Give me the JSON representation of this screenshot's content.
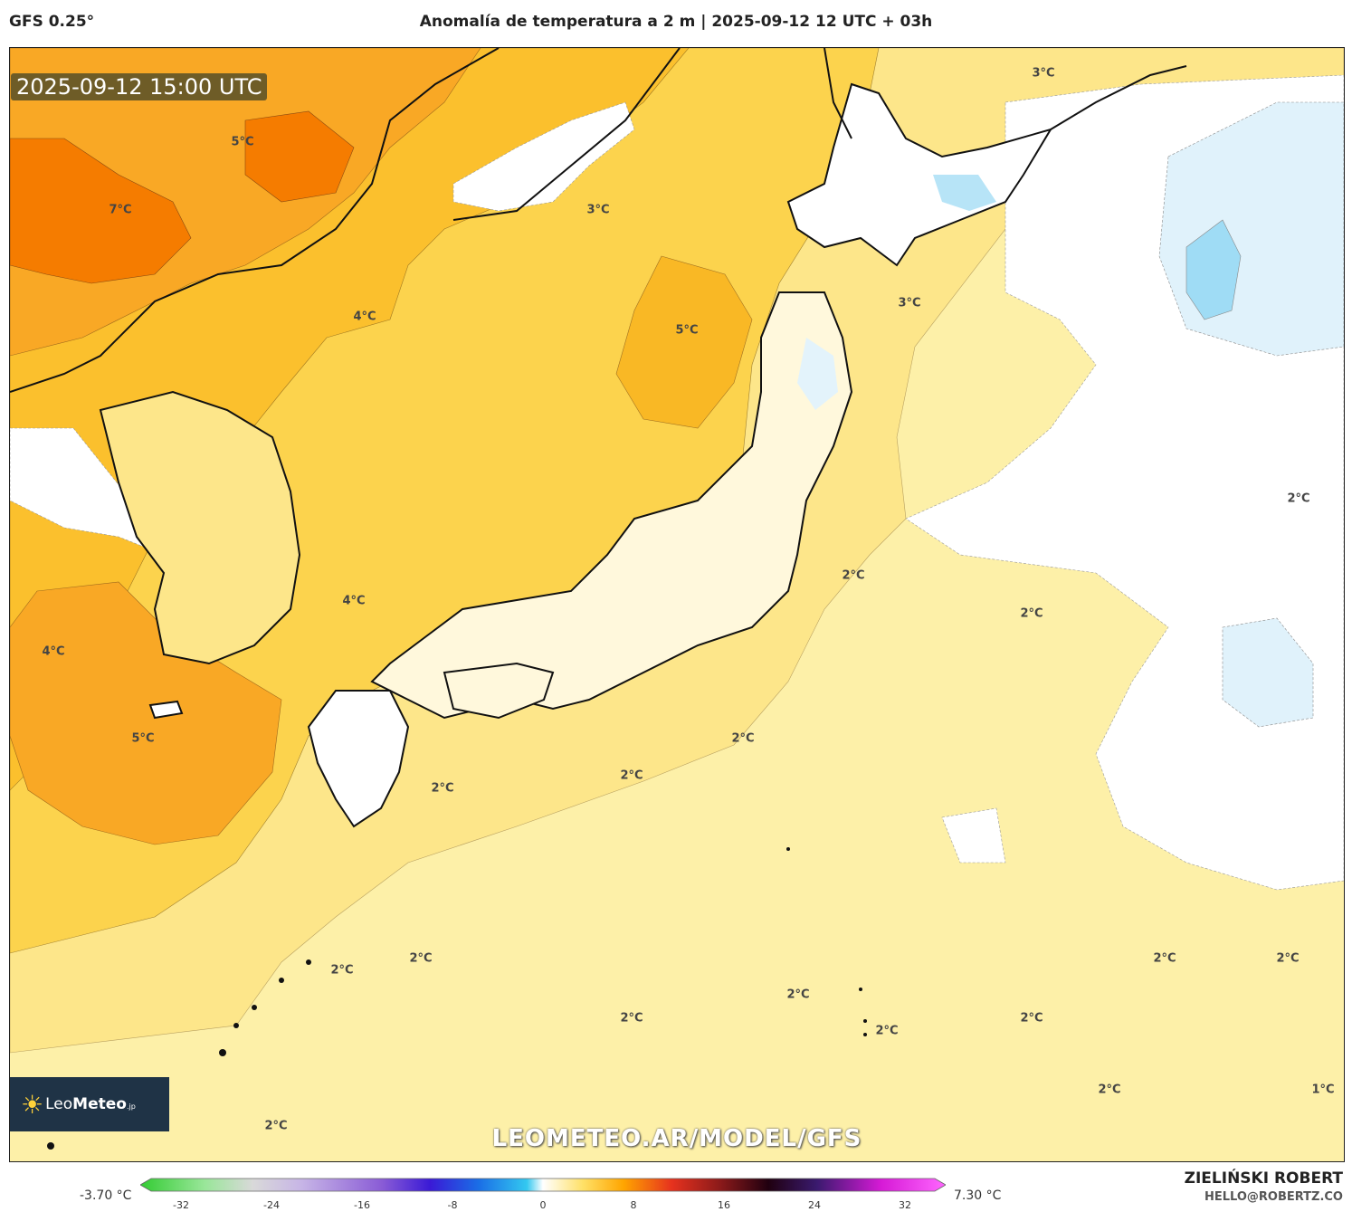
{
  "header": {
    "model": "GFS 0.25°",
    "title": "Anomalía de temperatura a 2 m | 2025-09-12 12 UTC + 03h"
  },
  "map": {
    "valid_time": "2025-09-12 15:00 UTC",
    "region": "Japan, Korea and the Western North Pacific",
    "contour_labels": [
      {
        "id": "c1",
        "text": "5°C"
      },
      {
        "id": "c2",
        "text": "7°C"
      },
      {
        "id": "c3",
        "text": "3°C"
      },
      {
        "id": "c4",
        "text": "4°C"
      },
      {
        "id": "c5",
        "text": "5°C"
      },
      {
        "id": "c6",
        "text": "3°C"
      },
      {
        "id": "c7",
        "text": "3°C"
      },
      {
        "id": "c8",
        "text": "4°C"
      },
      {
        "id": "c9",
        "text": "4°C"
      },
      {
        "id": "c10",
        "text": "5°C"
      },
      {
        "id": "c11",
        "text": "2°C"
      },
      {
        "id": "c12",
        "text": "2°C"
      },
      {
        "id": "c13",
        "text": "2°C"
      },
      {
        "id": "c14",
        "text": "2°C"
      },
      {
        "id": "c15",
        "text": "2°C"
      },
      {
        "id": "c16",
        "text": "2°C"
      },
      {
        "id": "c17",
        "text": "2°C"
      },
      {
        "id": "c18",
        "text": "2°C"
      },
      {
        "id": "c19",
        "text": "2°C"
      },
      {
        "id": "c20",
        "text": "2°C"
      },
      {
        "id": "c21",
        "text": "2°C"
      },
      {
        "id": "c22",
        "text": "2°C"
      },
      {
        "id": "c23",
        "text": "2°C"
      },
      {
        "id": "c24",
        "text": "2°C"
      },
      {
        "id": "c25",
        "text": "2°C"
      },
      {
        "id": "c26",
        "text": "2°C"
      },
      {
        "id": "c27",
        "text": "1°C"
      }
    ],
    "colors": {
      "ocean_warm": "#fdf0a8",
      "anomaly_2": "#fde68a",
      "anomaly_3": "#fcd34d",
      "anomaly_4": "#fbc02d",
      "anomaly_5": "#f9a825",
      "anomaly_7": "#f57c00",
      "near_zero": "#ffffff",
      "slight_cold": "#e0f2fb",
      "cold": "#9fdcf5"
    }
  },
  "logo": {
    "brand_light": "Leo",
    "brand_bold": "Meteo",
    "suffix": ".jp"
  },
  "watermark": "LEOMETEO.AR/MODEL/GFS",
  "legend": {
    "min_label": "-3.70 °C",
    "max_label": "7.30 °C",
    "ticks": [
      "-32",
      "-24",
      "-16",
      "-8",
      "0",
      "8",
      "16",
      "24",
      "32"
    ],
    "range": [
      -32,
      32
    ]
  },
  "credits": {
    "author": "ZIELIŃSKI ROBERT",
    "email": "HELLO@ROBERTZ.CO"
  }
}
